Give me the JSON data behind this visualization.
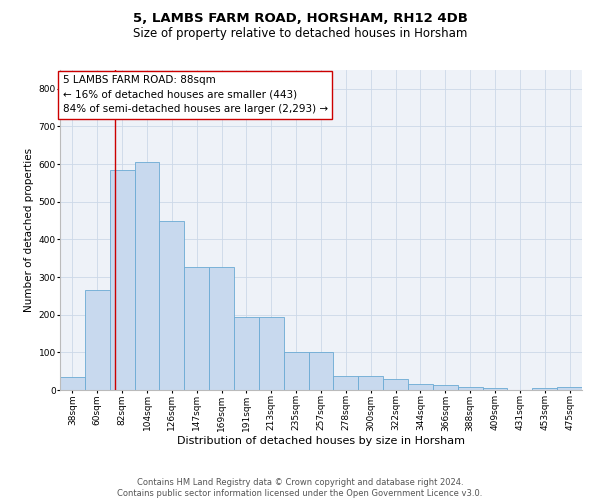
{
  "title1": "5, LAMBS FARM ROAD, HORSHAM, RH12 4DB",
  "title2": "Size of property relative to detached houses in Horsham",
  "xlabel": "Distribution of detached houses by size in Horsham",
  "ylabel": "Number of detached properties",
  "categories": [
    "38sqm",
    "60sqm",
    "82sqm",
    "104sqm",
    "126sqm",
    "147sqm",
    "169sqm",
    "191sqm",
    "213sqm",
    "235sqm",
    "257sqm",
    "278sqm",
    "300sqm",
    "322sqm",
    "344sqm",
    "366sqm",
    "388sqm",
    "409sqm",
    "431sqm",
    "453sqm",
    "475sqm"
  ],
  "values": [
    35,
    265,
    585,
    605,
    450,
    328,
    328,
    195,
    195,
    100,
    100,
    38,
    38,
    30,
    15,
    13,
    9,
    5,
    0,
    5,
    8
  ],
  "bar_color": "#c8d9ee",
  "bar_edge_color": "#6aaad4",
  "vline_color": "#cc0000",
  "vline_pos": 1.73,
  "annotation_text": "5 LAMBS FARM ROAD: 88sqm\n← 16% of detached houses are smaller (443)\n84% of semi-detached houses are larger (2,293) →",
  "ylim": [
    0,
    850
  ],
  "yticks": [
    0,
    100,
    200,
    300,
    400,
    500,
    600,
    700,
    800
  ],
  "grid_color": "#ccd8e8",
  "footer1": "Contains HM Land Registry data © Crown copyright and database right 2024.",
  "footer2": "Contains public sector information licensed under the Open Government Licence v3.0.",
  "bg_color": "#eef2f8",
  "title1_fontsize": 9.5,
  "title2_fontsize": 8.5,
  "ylabel_fontsize": 7.5,
  "xlabel_fontsize": 8,
  "tick_fontsize": 6.5,
  "ann_fontsize": 7.5,
  "footer_fontsize": 6
}
